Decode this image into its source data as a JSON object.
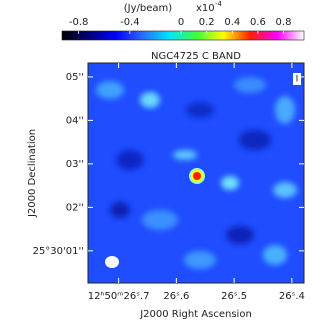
{
  "chart_data": {
    "type": "image",
    "title": "NGC4725 C BAND",
    "colorbar": {
      "label": "(Jy/beam)",
      "multiplier": "x10",
      "exponent": "-4",
      "clim": [
        -0.93,
        0.96
      ],
      "ticks": [
        -0.8,
        -0.4,
        0,
        0.2,
        0.4,
        0.6,
        0.8
      ],
      "colormap": [
        "#000000",
        "#00007a",
        "#0000ff",
        "#2a6cff",
        "#00e5ff",
        "#3cff3c",
        "#ffff00",
        "#ff2000",
        "#ff00ff",
        "#ffffff"
      ]
    },
    "stokes": "I",
    "x_label": "J2000 Right Ascension",
    "y_label": "J2000 Declination",
    "xlim": [
      26.753,
      26.379
    ],
    "xticks": [
      {
        "value": 26.7,
        "label": "12ʰ50ᵐ26ˢ.7"
      },
      {
        "value": 26.6,
        "label": "26ˢ.6"
      },
      {
        "value": 26.5,
        "label": "26ˢ.5"
      },
      {
        "value": 26.4,
        "label": "26ˢ.4"
      }
    ],
    "ylim": [
      0.26,
      5.32
    ],
    "yticks": [
      {
        "value": 1,
        "label": "25°30'01''"
      },
      {
        "value": 2,
        "label": "02''"
      },
      {
        "value": 3,
        "label": "03''"
      },
      {
        "value": 4,
        "label": "04''"
      },
      {
        "value": 5,
        "label": "05''"
      }
    ]
  }
}
